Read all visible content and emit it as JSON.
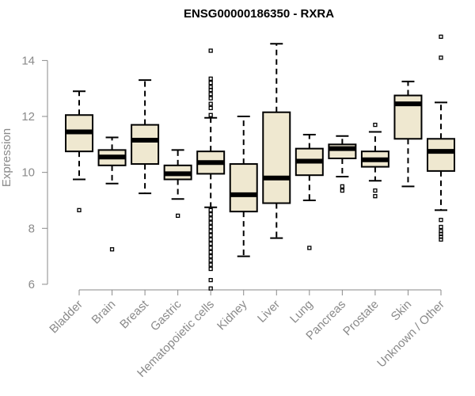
{
  "chart_data": {
    "type": "boxplot",
    "title": "ENSG00000186350 - RXRA",
    "xlabel": "",
    "ylabel": "Expression",
    "ylim": [
      5.8,
      15.2
    ],
    "yticks": [
      6,
      8,
      10,
      12,
      14
    ],
    "box_fill": "#efe8d0",
    "box_stroke": "#000000",
    "categories": [
      "Bladder",
      "Brain",
      "Breast",
      "Gastric",
      "Hematopoietic cells",
      "Kidney",
      "Liver",
      "Lung",
      "Pancreas",
      "Prostate",
      "Skin",
      "Unknown / Other"
    ],
    "boxes": [
      {
        "name": "Bladder",
        "whisker_low": 9.75,
        "q1": 10.75,
        "median": 11.45,
        "q3": 12.05,
        "whisker_high": 12.9,
        "outliers": [
          8.65
        ]
      },
      {
        "name": "Brain",
        "whisker_low": 9.6,
        "q1": 10.25,
        "median": 10.55,
        "q3": 10.8,
        "whisker_high": 11.25,
        "outliers": [
          7.25
        ]
      },
      {
        "name": "Breast",
        "whisker_low": 9.25,
        "q1": 10.3,
        "median": 11.15,
        "q3": 11.7,
        "whisker_high": 13.3,
        "outliers": []
      },
      {
        "name": "Gastric",
        "whisker_low": 9.05,
        "q1": 9.75,
        "median": 9.95,
        "q3": 10.25,
        "whisker_high": 10.8,
        "outliers": [
          8.45
        ]
      },
      {
        "name": "Hematopoietic cells",
        "whisker_low": 8.75,
        "q1": 9.95,
        "median": 10.35,
        "q3": 10.75,
        "whisker_high": 11.95,
        "outliers": [
          14.35,
          13.35,
          13.2,
          13.05,
          12.95,
          12.8,
          12.65,
          12.45,
          12.3,
          12.05,
          8.65,
          8.5,
          8.35,
          8.2,
          8.05,
          7.9,
          7.75,
          7.6,
          7.45,
          7.3,
          7.15,
          7.0,
          6.85,
          6.7,
          6.55,
          6.15,
          5.85
        ]
      },
      {
        "name": "Kidney",
        "whisker_low": 7.0,
        "q1": 8.6,
        "median": 9.2,
        "q3": 10.3,
        "whisker_high": 12.0,
        "outliers": []
      },
      {
        "name": "Liver",
        "whisker_low": 7.65,
        "q1": 8.9,
        "median": 9.8,
        "q3": 12.15,
        "whisker_high": 14.6,
        "outliers": []
      },
      {
        "name": "Lung",
        "whisker_low": 9.0,
        "q1": 9.9,
        "median": 10.4,
        "q3": 10.85,
        "whisker_high": 11.35,
        "outliers": [
          7.3
        ]
      },
      {
        "name": "Pancreas",
        "whisker_low": 9.85,
        "q1": 10.5,
        "median": 10.85,
        "q3": 11.0,
        "whisker_high": 11.3,
        "outliers": [
          9.5,
          9.35
        ]
      },
      {
        "name": "Prostate",
        "whisker_low": 9.7,
        "q1": 10.2,
        "median": 10.45,
        "q3": 10.75,
        "whisker_high": 11.45,
        "outliers": [
          11.7,
          9.35,
          9.15
        ]
      },
      {
        "name": "Skin",
        "whisker_low": 9.5,
        "q1": 11.2,
        "median": 12.45,
        "q3": 12.75,
        "whisker_high": 13.25,
        "outliers": []
      },
      {
        "name": "Unknown / Other",
        "whisker_low": 8.65,
        "q1": 10.05,
        "median": 10.75,
        "q3": 11.2,
        "whisker_high": 12.5,
        "outliers": [
          14.85,
          14.1,
          8.3,
          8.05,
          7.9,
          7.8,
          7.7,
          7.6
        ]
      }
    ]
  }
}
